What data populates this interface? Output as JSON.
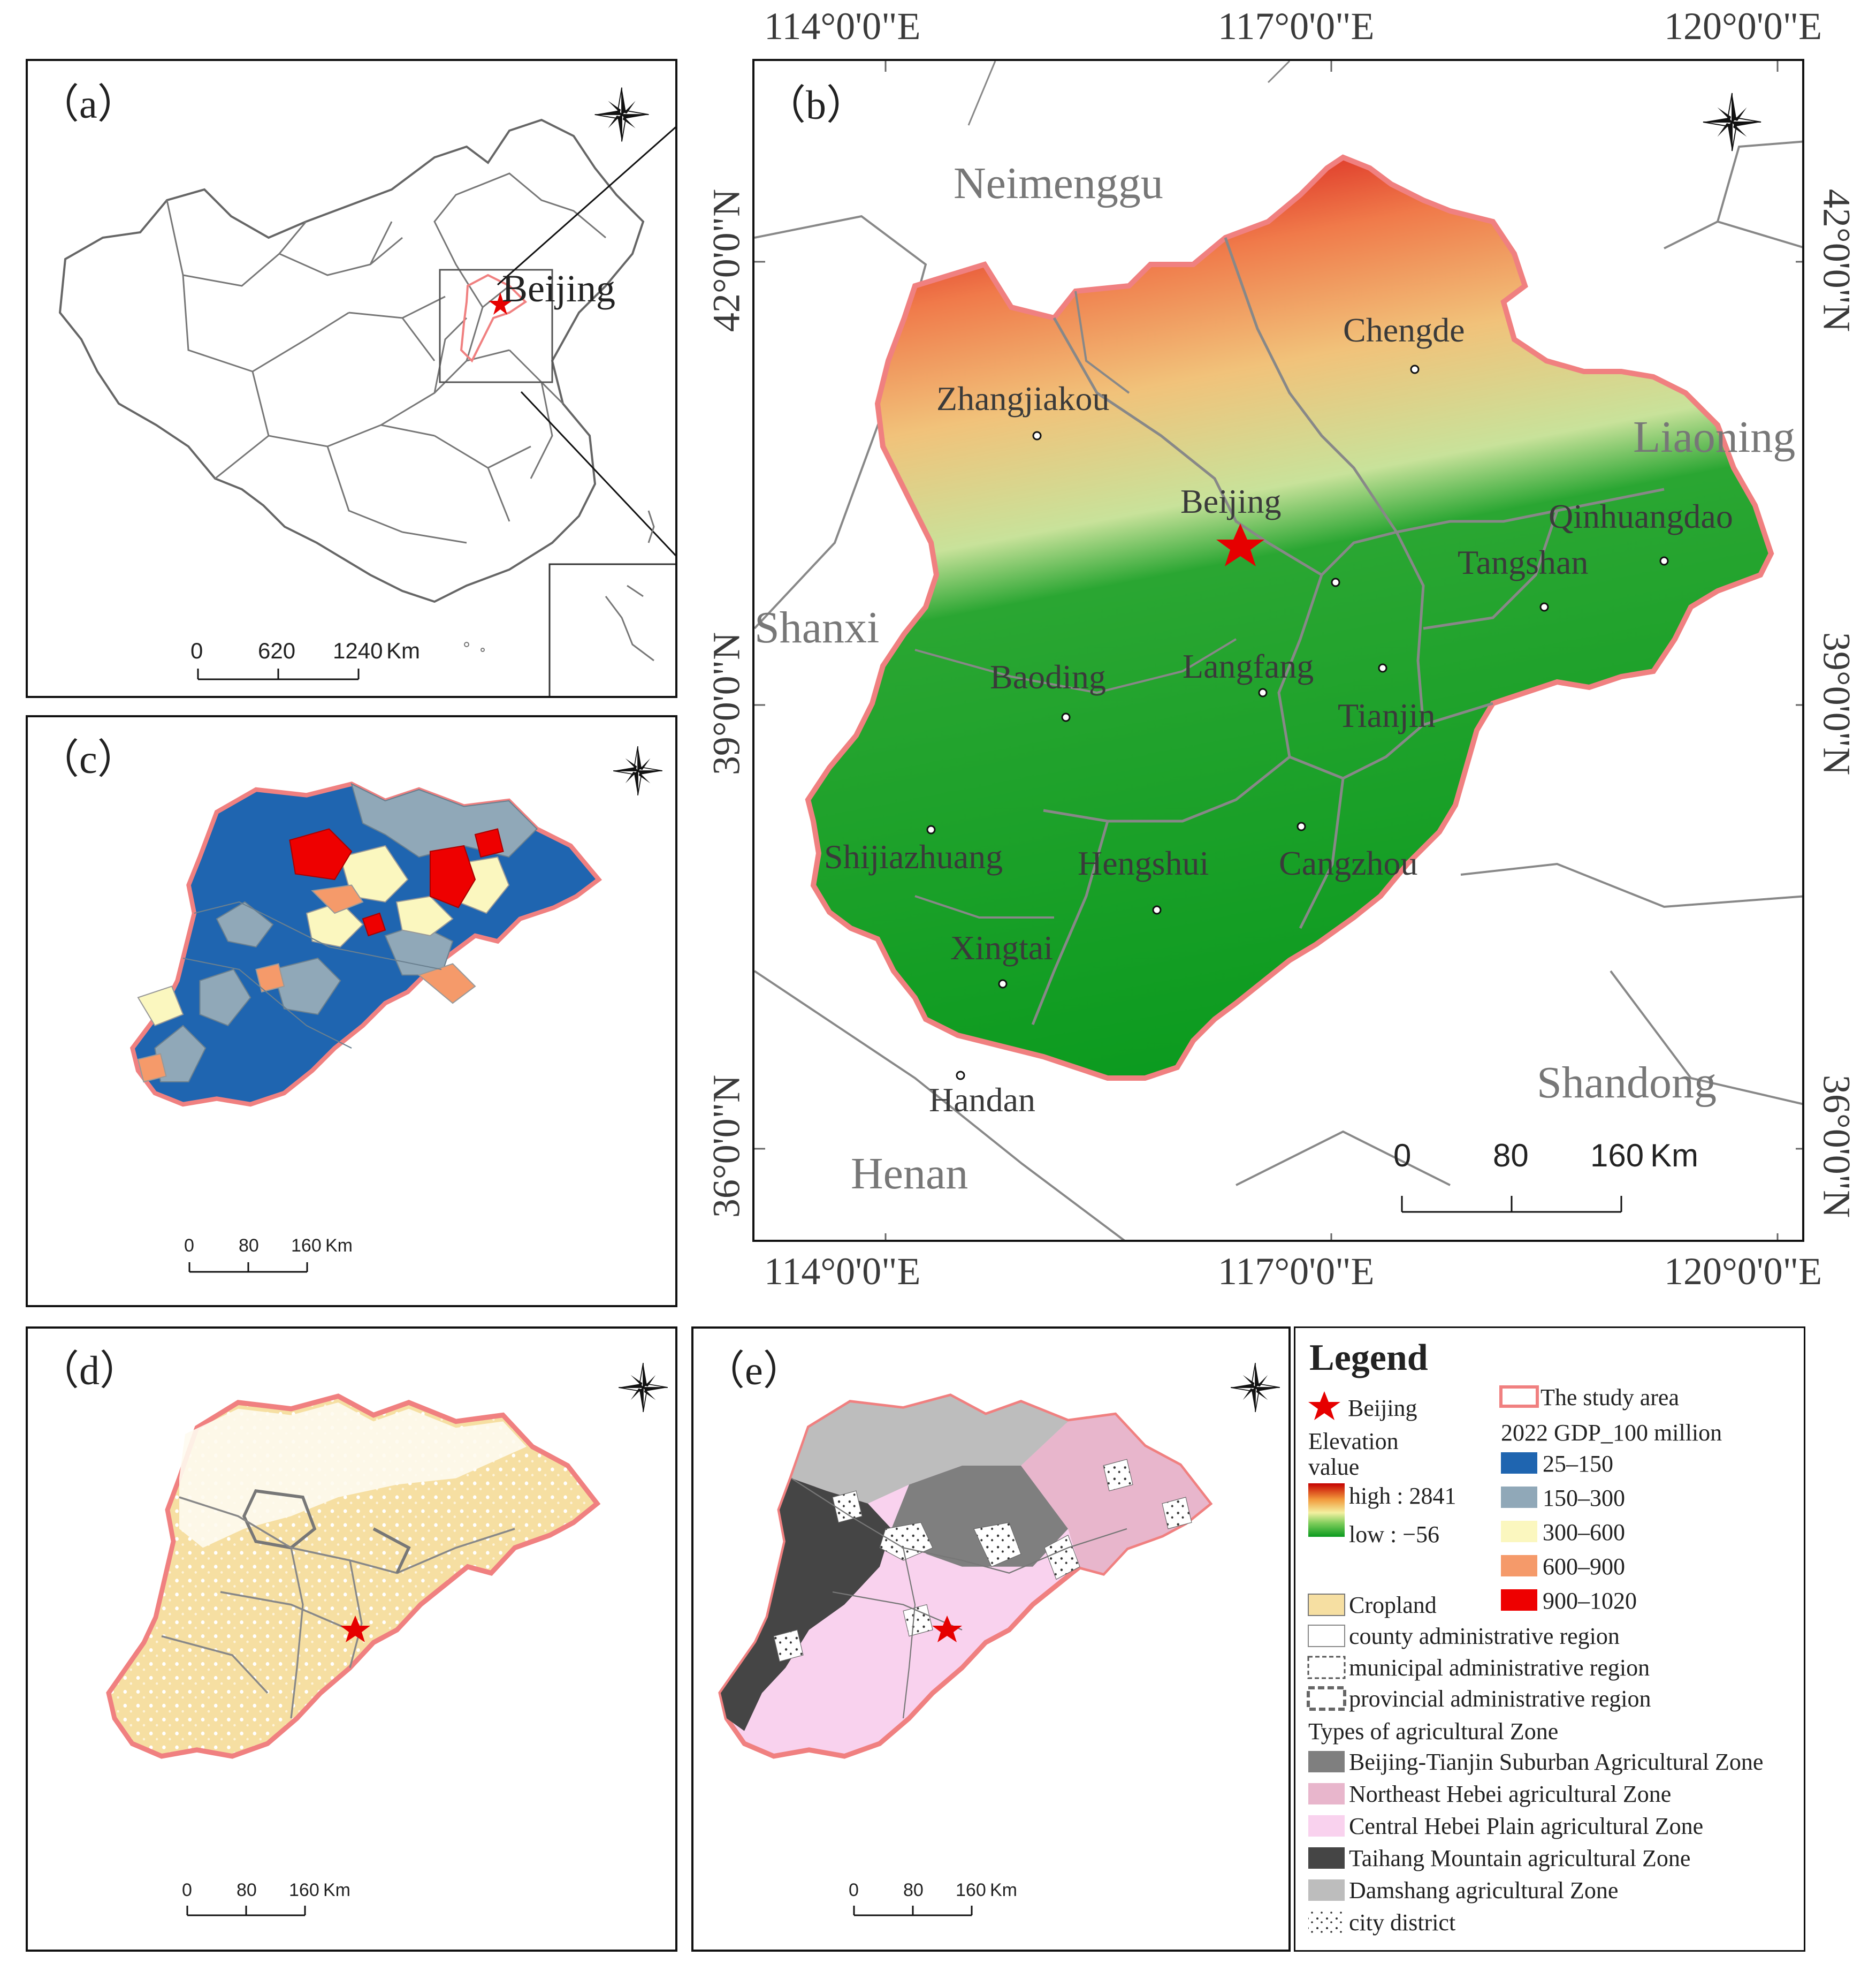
{
  "panels": {
    "a": {
      "label": "（a）",
      "place": "Beijing",
      "scale": [
        "0",
        "620",
        "1240",
        "Km"
      ]
    },
    "b": {
      "label": "（b）",
      "top_ticks": [
        "114°0'0\"E",
        "117°0'0\"E",
        "120°0'0\"E"
      ],
      "bottom_ticks": [
        "114°0'0\"E",
        "117°0'0\"E",
        "120°0'0\"E"
      ],
      "left_ticks": [
        "42°0'0\"N",
        "39°0'0\"N",
        "36°0'0\"N"
      ],
      "right_ticks": [
        "42°0'0\"N",
        "39°0'0\"N",
        "36°0'0\"N"
      ],
      "regions": [
        "Neimenggu",
        "Liaoning",
        "Shanxi",
        "Shandong",
        "Henan"
      ],
      "cities": [
        "Chengde",
        "Zhangjiakou",
        "Beijing",
        "Qinhuangdao",
        "Tangshan",
        "Baoding",
        "Langfang",
        "Tianjin",
        "Shijiazhuang",
        "Hengshui",
        "Cangzhou",
        "Xingtai",
        "Handan"
      ],
      "scale": [
        "0",
        "80",
        "160",
        "Km"
      ]
    },
    "c": {
      "label": "（c）",
      "scale": [
        "0",
        "80",
        "160",
        "Km"
      ]
    },
    "d": {
      "label": "（d）",
      "scale": [
        "0",
        "80",
        "160",
        "Km"
      ]
    },
    "e": {
      "label": "（e）",
      "scale": [
        "0",
        "80",
        "160",
        "Km"
      ]
    }
  },
  "compass": {
    "n": "N",
    "s": "S",
    "e": "E",
    "w": "W"
  },
  "legend": {
    "title": "Legend",
    "beijing": "Beijing",
    "elevation_title": "Elevation",
    "elevation_title2": "value",
    "elev_high": "high : 2841",
    "elev_low": "low : −56",
    "cropland": "Cropland",
    "county": "county administrative region",
    "municipal": "municipal administrative region",
    "provincial": "provincial administrative region",
    "zones_title": "Types of agricultural Zone",
    "zones": [
      {
        "label": "Beijing-Tianjin Suburban Agricultural Zone",
        "color": "#7f7f7f"
      },
      {
        "label": "Northeast Hebei agricultural Zone",
        "color": "#e8b6cc"
      },
      {
        "label": "Central Hebei Plain agricultural Zone",
        "color": "#f9d2ee"
      },
      {
        "label": "Taihang Mountain agricultural Zone",
        "color": "#454545"
      },
      {
        "label": "Damshang agricultural Zone",
        "color": "#bdbdbd"
      }
    ],
    "city_district": "city district",
    "study_area": "The study area",
    "gdp_title": "2022 GDP_100 million",
    "gdp": [
      {
        "label": "25–150",
        "color": "#1f65b0"
      },
      {
        "label": "150–300",
        "color": "#90a8b8"
      },
      {
        "label": "300–600",
        "color": "#fbf7bf"
      },
      {
        "label": "600–900",
        "color": "#f59a6a"
      },
      {
        "label": "900–1020",
        "color": "#ee0000"
      }
    ]
  },
  "colors": {
    "study_border": "#f08080",
    "star": "#e60000",
    "green": "#0a9a1e",
    "cropland": "#f6dfa2"
  }
}
